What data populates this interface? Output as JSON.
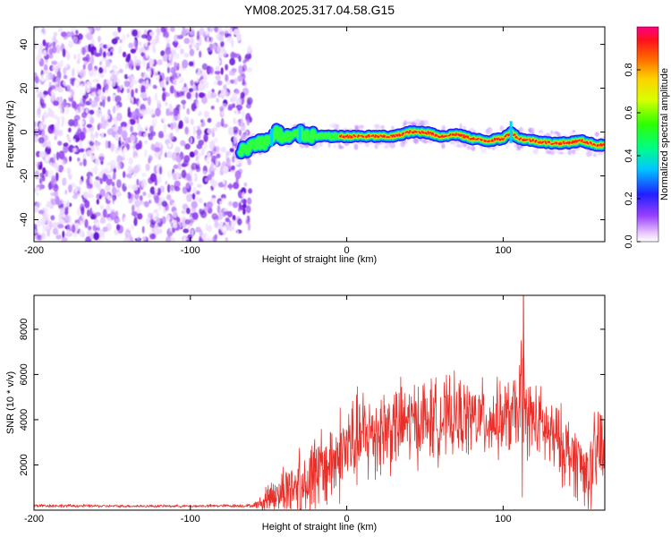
{
  "colors": {
    "snr_line": "#e8302a",
    "spectrogram_noise": "#7a1fe0",
    "spectrogram_peak": "#ff1a1a"
  },
  "chart_data": [
    {
      "type": "heatmap",
      "title": "YM08.2025.317.04.58.G15",
      "xlabel": "Height of straight line (km)",
      "ylabel": "Frequency (Hz)",
      "xlim": [
        -200,
        165
      ],
      "ylim": [
        -50,
        48
      ],
      "xticks": [
        -200,
        -100,
        0,
        100
      ],
      "yticks": [
        -40,
        -20,
        0,
        20,
        40
      ],
      "noise_region_x": [
        -200,
        -65
      ],
      "signal_track": {
        "x": [
          -68,
          -60,
          -50,
          -45,
          -40,
          -30,
          -20,
          -10,
          0,
          10,
          20,
          30,
          40,
          50,
          60,
          70,
          80,
          90,
          100,
          105,
          110,
          120,
          130,
          140,
          150,
          160
        ],
        "freq": [
          -9,
          -6,
          -4,
          0,
          -3,
          -1,
          -2,
          -2,
          -2,
          -2,
          -2,
          -2,
          0,
          0,
          -2,
          -1,
          -3,
          -4,
          -3,
          0,
          -3,
          -4,
          -5,
          -5,
          -4,
          -6
        ]
      },
      "colorbar": {
        "label": "Normalized spectral amplitude",
        "range": [
          0.0,
          1.0
        ],
        "ticks": [
          0.0,
          0.2,
          0.4,
          0.6,
          0.8
        ],
        "tick_labels": [
          "0.0",
          "0.2",
          "0.4",
          "0.6",
          "0.8"
        ]
      }
    },
    {
      "type": "line",
      "xlabel": "Height of straight line (km)",
      "ylabel": "SNR (10 * v/v)",
      "xlim": [
        -200,
        165
      ],
      "ylim": [
        0,
        9500
      ],
      "xticks": [
        -200,
        -100,
        0,
        100
      ],
      "yticks": [
        2000,
        4000,
        6000,
        8000
      ],
      "envelope": {
        "x": [
          -200,
          -150,
          -100,
          -60,
          -55,
          -50,
          -40,
          -30,
          -20,
          -10,
          0,
          10,
          20,
          30,
          40,
          50,
          60,
          70,
          80,
          90,
          100,
          110,
          112,
          115,
          120,
          130,
          140,
          150,
          155,
          160,
          165
        ],
        "base": [
          200,
          180,
          180,
          200,
          300,
          600,
          900,
          1200,
          1600,
          2100,
          2800,
          3200,
          3500,
          3700,
          3900,
          4000,
          4000,
          4100,
          4100,
          4000,
          4000,
          4300,
          5000,
          4200,
          4000,
          3300,
          2700,
          2000,
          1500,
          2500,
          3000
        ],
        "amp": [
          80,
          60,
          60,
          80,
          300,
          800,
          1200,
          1600,
          1800,
          2000,
          2200,
          2200,
          2200,
          2000,
          1900,
          1900,
          1800,
          1800,
          1700,
          1700,
          1700,
          1800,
          4500,
          1800,
          1700,
          1700,
          1700,
          1700,
          1600,
          2200,
          3000
        ]
      },
      "peak": {
        "x": 113,
        "y": 9500
      }
    }
  ]
}
